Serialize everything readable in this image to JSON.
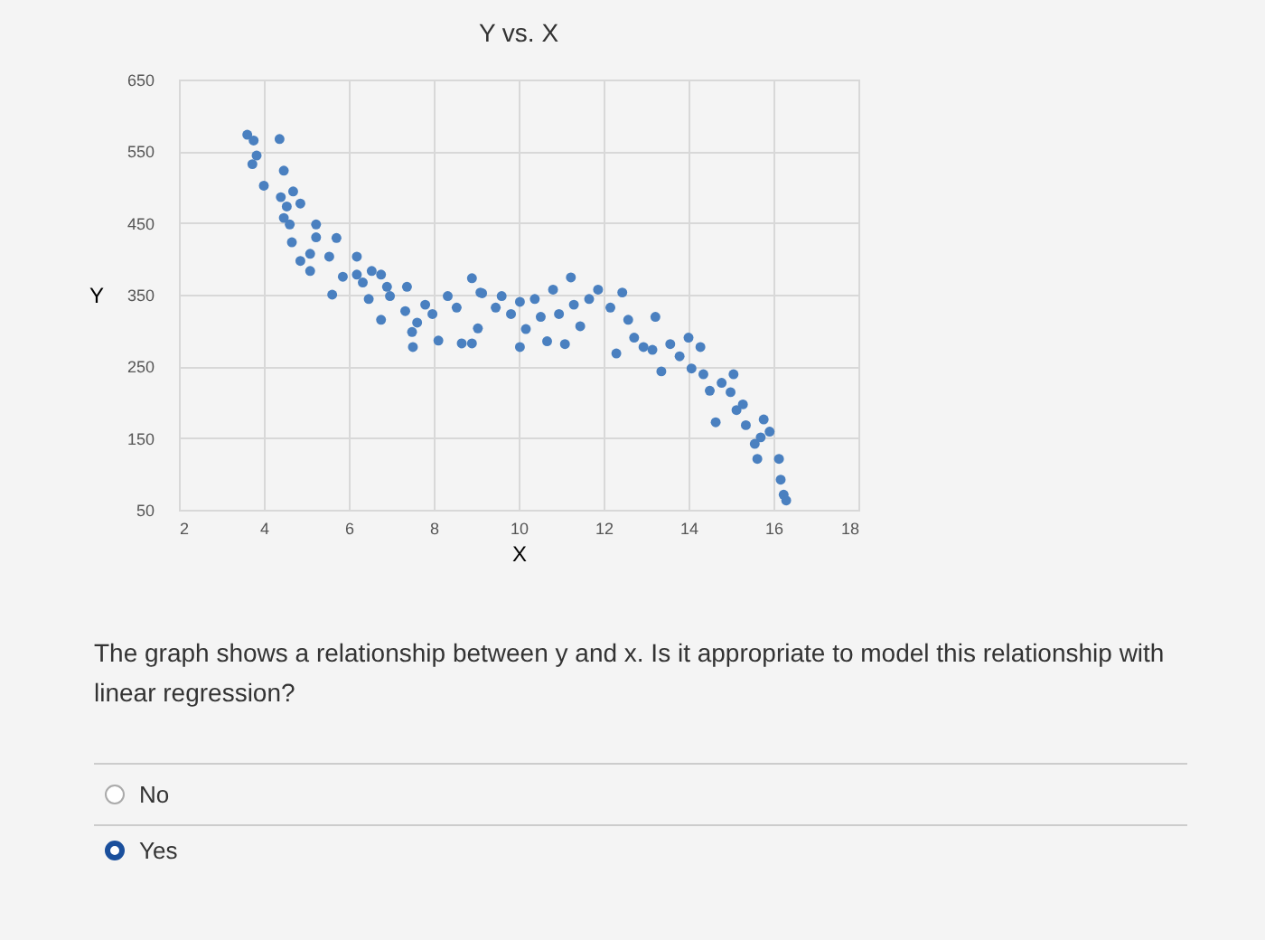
{
  "chart_data": {
    "type": "scatter",
    "title": "Y vs. X",
    "xlabel": "X",
    "ylabel": "Y",
    "xlim": [
      2,
      18
    ],
    "xticks": [
      2,
      4,
      6,
      8,
      10,
      12,
      14,
      16,
      18
    ],
    "ylim": [
      50,
      650
    ],
    "yticks": [
      50,
      150,
      250,
      350,
      450,
      550,
      650
    ],
    "grid": true,
    "marker": "circle",
    "series": [
      {
        "color": "#4a80c0",
        "x": [
          3.61,
          3.76,
          3.83,
          3.73,
          4.0,
          4.37,
          4.47,
          4.4,
          4.69,
          4.54,
          4.86,
          4.47,
          4.61,
          4.66,
          4.86,
          5.09,
          5.09,
          5.23,
          5.23,
          5.54,
          5.71,
          5.61,
          5.86,
          6.19,
          6.19,
          6.33,
          6.47,
          6.54,
          6.76,
          6.76,
          6.9,
          6.97,
          7.37,
          7.33,
          7.51,
          7.49,
          7.61,
          7.8,
          7.97,
          8.11,
          8.33,
          8.54,
          8.66,
          8.9,
          8.9,
          9.04,
          9.14,
          9.1,
          9.46,
          9.6,
          9.82,
          10.03,
          10.17,
          10.03,
          10.38,
          10.52,
          10.67,
          10.81,
          10.95,
          11.09,
          11.23,
          11.3,
          11.45,
          11.66,
          11.87,
          12.16,
          12.3,
          12.44,
          12.58,
          12.72,
          12.94,
          13.22,
          13.15,
          13.36,
          13.57,
          13.79,
          14.0,
          14.07,
          14.28,
          14.35,
          14.5,
          14.64,
          14.78,
          14.99,
          15.06,
          15.13,
          15.28,
          15.35,
          15.56,
          15.7,
          15.77,
          15.62,
          15.91,
          16.13,
          16.17,
          16.24,
          16.3
        ],
        "values": [
          573,
          565,
          544,
          532,
          502,
          567,
          523,
          486,
          494,
          473,
          477,
          457,
          448,
          423,
          397,
          383,
          407,
          448,
          430,
          403,
          429,
          350,
          375,
          403,
          378,
          367,
          344,
          383,
          378,
          315,
          361,
          348,
          361,
          327,
          277,
          298,
          311,
          336,
          323,
          286,
          348,
          332,
          282,
          282,
          373,
          303,
          352,
          353,
          332,
          348,
          323,
          340,
          302,
          277,
          344,
          319,
          285,
          357,
          323,
          281,
          374,
          336,
          306,
          344,
          357,
          332,
          268,
          353,
          315,
          290,
          277,
          319,
          273,
          243,
          281,
          264,
          290,
          247,
          277,
          239,
          216,
          172,
          227,
          214,
          239,
          189,
          197,
          168,
          142,
          151,
          176,
          121,
          159,
          121,
          92,
          71,
          63
        ]
      }
    ],
    "annotations": [
      "The graph shows a relationship between y and x. Is it appropriate to model this relationship with linear regression?",
      "No",
      "Yes"
    ]
  }
}
